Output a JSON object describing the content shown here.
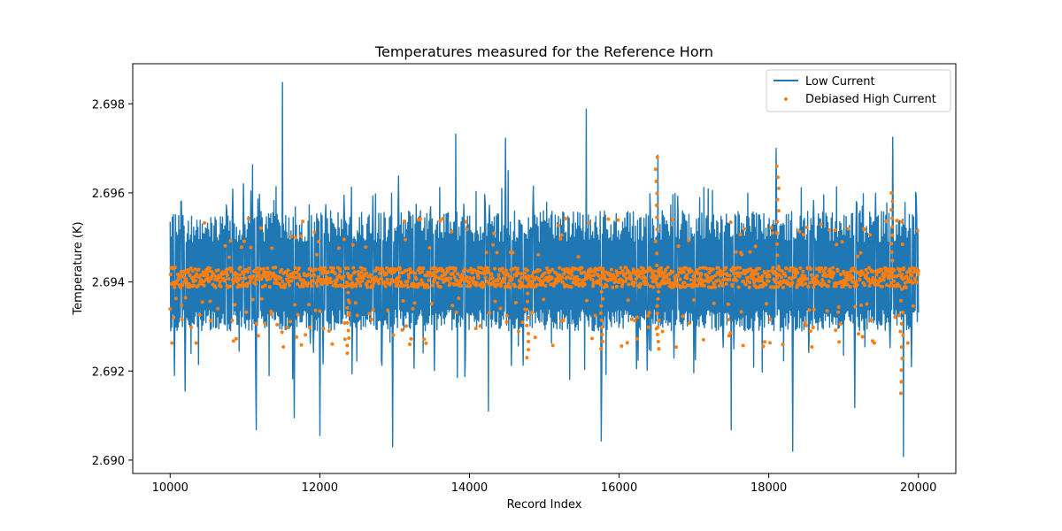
{
  "chart_data": {
    "type": "line",
    "title": "Temperatures measured for the Reference Horn",
    "xlabel": "Record Index",
    "ylabel": "Temperature (K)",
    "xlim": [
      9500,
      20500
    ],
    "ylim": [
      2.6897,
      2.6989
    ],
    "xticks": [
      10000,
      12000,
      14000,
      16000,
      18000,
      20000
    ],
    "xtick_labels": [
      "10000",
      "12000",
      "14000",
      "16000",
      "18000",
      "20000"
    ],
    "yticks": [
      2.69,
      2.692,
      2.694,
      2.696,
      2.698
    ],
    "ytick_labels": [
      "2.690",
      "2.692",
      "2.694",
      "2.696",
      "2.698"
    ],
    "grid": false,
    "legend_position": "top-right",
    "series": [
      {
        "name": "Low Current",
        "kind": "line",
        "color": "#1f77b4",
        "x_range": [
          10000,
          20000
        ],
        "center": 2.694,
        "band_low": 2.6929,
        "band_high": 2.6956,
        "spikes_up": [
          [
            11500,
            2.69848
          ],
          [
            15560,
            2.69788
          ],
          [
            13820,
            2.69732
          ],
          [
            19660,
            2.69725
          ],
          [
            14480,
            2.69723
          ],
          [
            18100,
            2.697
          ],
          [
            14520,
            2.6965
          ],
          [
            11100,
            2.69663
          ],
          [
            16520,
            2.69685
          ],
          [
            13050,
            2.69638
          ],
          [
            10980,
            2.6962
          ]
        ],
        "spikes_down": [
          [
            12970,
            2.6903
          ],
          [
            19800,
            2.69008
          ],
          [
            15760,
            2.69043
          ],
          [
            11150,
            2.69068
          ],
          [
            18320,
            2.6902
          ],
          [
            17500,
            2.69068
          ],
          [
            12000,
            2.69055
          ],
          [
            14250,
            2.6911
          ],
          [
            11660,
            2.69095
          ],
          [
            19150,
            2.69118
          ],
          [
            10060,
            2.6919
          ],
          [
            10200,
            2.69155
          ]
        ]
      },
      {
        "name": "Debiased High Current",
        "kind": "scatter",
        "color": "#ff7f0e",
        "x_range": [
          10000,
          20000
        ],
        "center": 2.6941,
        "spread": 0.00045,
        "clusters": [
          [
            16500,
            2.6968
          ],
          [
            18120,
            2.6966
          ],
          [
            19650,
            2.696
          ],
          [
            19780,
            2.6915
          ],
          [
            12380,
            2.6924
          ],
          [
            14780,
            2.6923
          ],
          [
            15770,
            2.6925
          ],
          [
            16520,
            2.6925
          ]
        ]
      }
    ]
  }
}
